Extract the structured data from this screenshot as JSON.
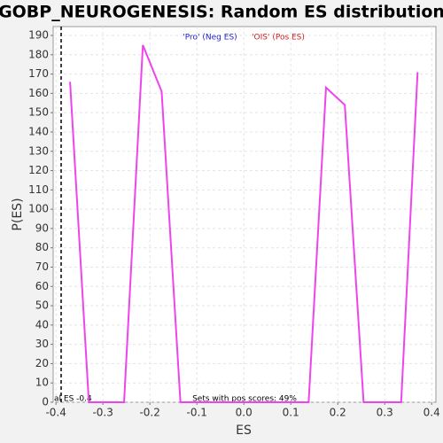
{
  "chart_data": {
    "type": "line",
    "title": "GOBP_NEUROGENESIS: Random ES distribution",
    "x_label": "ES",
    "y_label": "P(ES)",
    "legend_labels": [
      {
        "text": "'Pro' (Neg ES)",
        "color": "#2222cc"
      },
      {
        "text": "'OIS' (Pos ES)",
        "color": "#cc2222"
      }
    ],
    "annotation": "Sets with pos scores: 49%",
    "actual_es": {
      "label": "al ES -0.4",
      "value": -0.389
    },
    "series": [
      {
        "color": "#ee44ee",
        "x": [
          -0.37,
          -0.33,
          -0.255,
          -0.215,
          -0.175,
          -0.135,
          0.138,
          0.175,
          0.215,
          0.255,
          0.335,
          0.37
        ],
        "values": [
          166,
          0,
          0,
          185,
          161,
          0,
          0,
          163,
          154,
          0,
          0,
          171
        ]
      }
    ],
    "xlim": [
      -0.406,
      0.409
    ],
    "ylim": [
      0,
      194.6
    ],
    "xticks": [
      -0.4,
      -0.3,
      -0.2,
      -0.1,
      {
        "value": 0,
        "label": "0.0"
      },
      0.1,
      0.2,
      0.3,
      0.4
    ],
    "yticks": [
      0,
      10,
      20,
      30,
      40,
      50,
      60,
      70,
      80,
      90,
      100,
      110,
      120,
      130,
      140,
      150,
      160,
      170,
      180,
      190
    ],
    "grid": true
  }
}
